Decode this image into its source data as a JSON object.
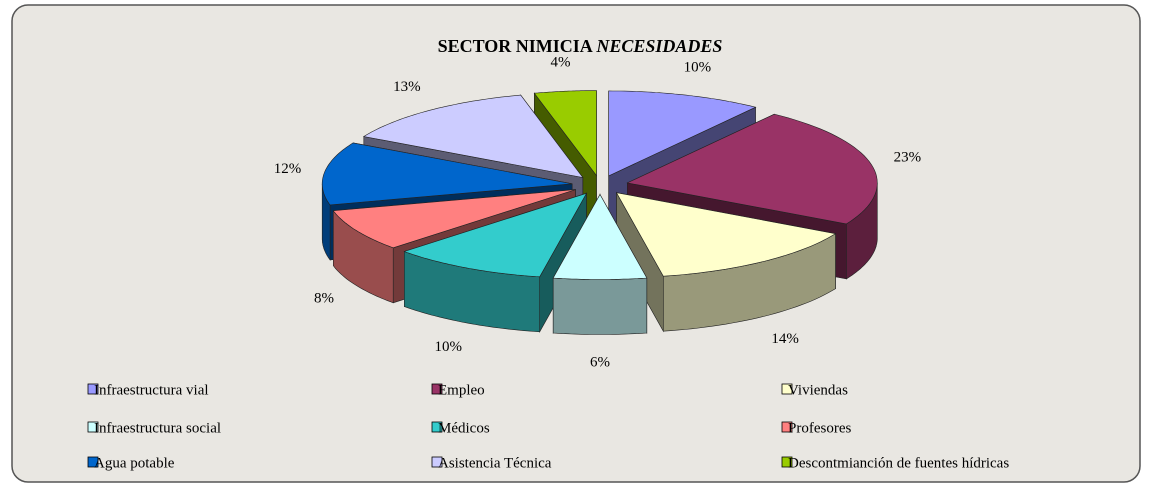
{
  "chart_data": {
    "type": "pie",
    "title": "SECTOR NIMICIA",
    "subtitle": "NECESIDADES",
    "categories": [
      "Infraestructura vial",
      "Empleo",
      "Viviendas",
      "Infraestructura social",
      "Médicos",
      "Profesores",
      "Agua potable",
      "Asistencia Técnica",
      "Descontmianción de fuentes hídricas"
    ],
    "values": [
      10,
      23,
      14,
      6,
      10,
      8,
      12,
      13,
      4
    ],
    "value_labels": [
      "10%",
      "23%",
      "14%",
      "6%",
      "10%",
      "8%",
      "12%",
      "13%",
      "4%"
    ],
    "colors": [
      "#9999ff",
      "#993366",
      "#ffffcc",
      "#ccffff",
      "#33cccc",
      "#ff8080",
      "#0066cc",
      "#ccccff",
      "#99cc00"
    ],
    "legend": "bottom"
  }
}
